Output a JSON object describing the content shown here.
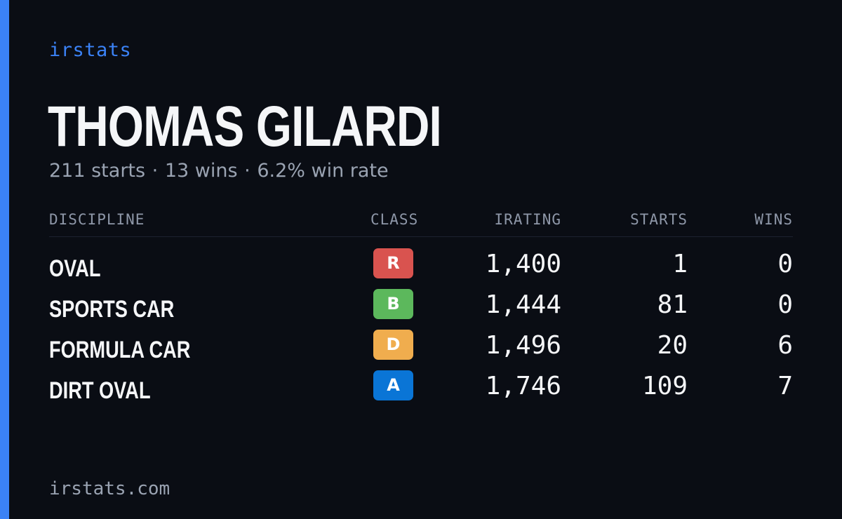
{
  "brand": "irstats",
  "driver": {
    "name": "THOMAS GILARDI",
    "starts_text": "211 starts",
    "wins_text": "13 wins",
    "win_rate_text": "6.2% win rate",
    "separator": "·"
  },
  "table": {
    "headers": {
      "discipline": "DISCIPLINE",
      "class": "CLASS",
      "irating": "IRATING",
      "starts": "STARTS",
      "wins": "WINS"
    },
    "rows": [
      {
        "discipline": "OVAL",
        "class": "R",
        "class_color": "#d9534f",
        "irating": "1,400",
        "starts": "1",
        "wins": "0"
      },
      {
        "discipline": "SPORTS CAR",
        "class": "B",
        "class_color": "#5cb85c",
        "irating": "1,444",
        "starts": "81",
        "wins": "0"
      },
      {
        "discipline": "FORMULA CAR",
        "class": "D",
        "class_color": "#f0ad4e",
        "irating": "1,496",
        "starts": "20",
        "wins": "6"
      },
      {
        "discipline": "DIRT OVAL",
        "class": "A",
        "class_color": "#0a75d6",
        "irating": "1,746",
        "starts": "109",
        "wins": "7"
      }
    ]
  },
  "footer": "irstats.com",
  "colors": {
    "accent": "#3b82f6",
    "background": "#0a0d14"
  }
}
